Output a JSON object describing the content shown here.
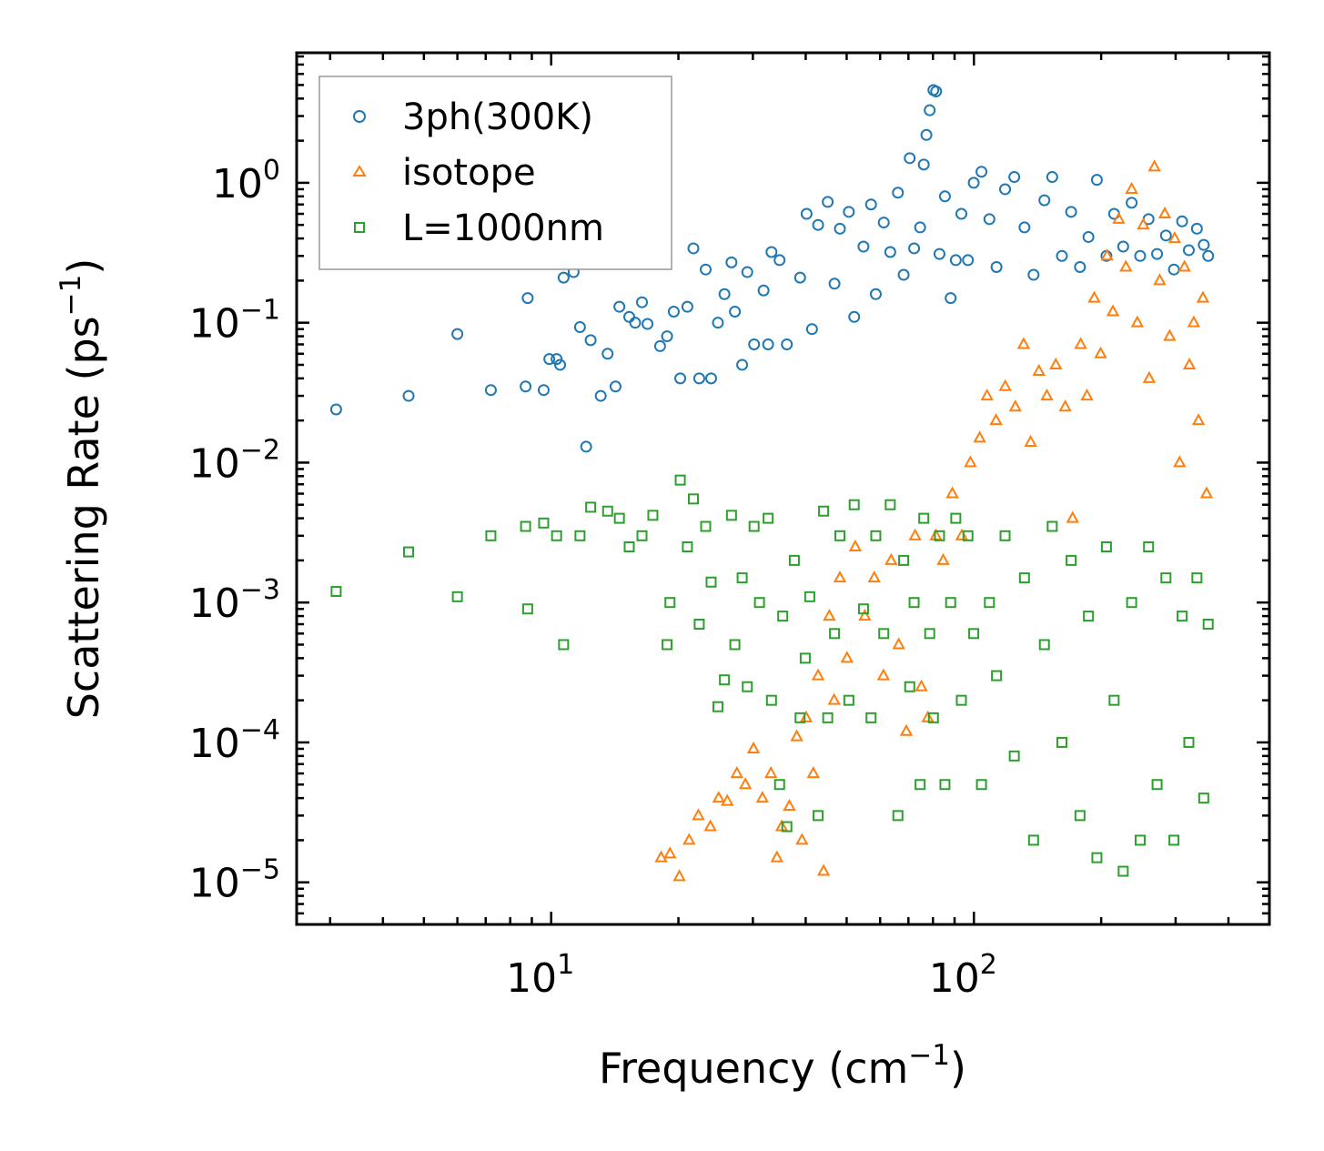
{
  "chart_data": {
    "type": "scatter",
    "xscale": "log",
    "yscale": "log",
    "xlim": [
      2.5,
      500
    ],
    "ylim": [
      5e-06,
      8.5
    ],
    "xlabel": {
      "text": "Frequency (cm",
      "sup": "−1",
      "close": ")"
    },
    "ylabel": {
      "text": "Scattering Rate (ps",
      "sup": "−1",
      "close": ")"
    },
    "xticks": [
      {
        "value": 10,
        "base": "10",
        "exp": "1"
      },
      {
        "value": 100,
        "base": "10",
        "exp": "2"
      }
    ],
    "yticks": [
      {
        "value": 1,
        "base": "10",
        "exp": "0"
      },
      {
        "value": 0.1,
        "base": "10",
        "exp": "−1"
      },
      {
        "value": 0.01,
        "base": "10",
        "exp": "−2"
      },
      {
        "value": 0.001,
        "base": "10",
        "exp": "−3"
      },
      {
        "value": 0.0001,
        "base": "10",
        "exp": "−4"
      },
      {
        "value": 1e-05,
        "base": "10",
        "exp": "−5"
      }
    ],
    "legend_position": "top-left",
    "series": [
      {
        "name": "3ph(300K)",
        "marker": "circle",
        "color": "#1f77b4",
        "points": [
          [
            3.1,
            0.024
          ],
          [
            4.6,
            0.03
          ],
          [
            6,
            0.083
          ],
          [
            7.2,
            0.033
          ],
          [
            8.7,
            0.035
          ],
          [
            8.8,
            0.15
          ],
          [
            9.6,
            0.033
          ],
          [
            9.9,
            0.055
          ],
          [
            10.3,
            0.055
          ],
          [
            10.5,
            0.05
          ],
          [
            10.7,
            0.21
          ],
          [
            11.3,
            0.23
          ],
          [
            11.7,
            0.093
          ],
          [
            12.1,
            0.013
          ],
          [
            12.4,
            0.075
          ],
          [
            13.1,
            0.03
          ],
          [
            13.6,
            0.06
          ],
          [
            14.2,
            0.035
          ],
          [
            14.5,
            0.13
          ],
          [
            15.3,
            0.11
          ],
          [
            15.8,
            0.1
          ],
          [
            16.4,
            0.14
          ],
          [
            16.9,
            0.098
          ],
          [
            17.1,
            0.29
          ],
          [
            17.4,
            0.31
          ],
          [
            18.1,
            0.068
          ],
          [
            18.8,
            0.08
          ],
          [
            19.5,
            0.12
          ],
          [
            20.2,
            0.04
          ],
          [
            21,
            0.13
          ],
          [
            21.7,
            0.34
          ],
          [
            22.4,
            0.04
          ],
          [
            23.2,
            0.24
          ],
          [
            23.9,
            0.04
          ],
          [
            24.8,
            0.1
          ],
          [
            25.7,
            0.16
          ],
          [
            26.7,
            0.27
          ],
          [
            27.2,
            0.12
          ],
          [
            28.3,
            0.05
          ],
          [
            29.1,
            0.23
          ],
          [
            30.2,
            0.07
          ],
          [
            31.8,
            0.17
          ],
          [
            32.6,
            0.07
          ],
          [
            33.2,
            0.32
          ],
          [
            34.7,
            0.28
          ],
          [
            36.1,
            0.07
          ],
          [
            38.8,
            0.21
          ],
          [
            40.2,
            0.6
          ],
          [
            41.4,
            0.09
          ],
          [
            42.8,
            0.5
          ],
          [
            45.1,
            0.73
          ],
          [
            46.8,
            0.19
          ],
          [
            48.2,
            0.47
          ],
          [
            50.6,
            0.62
          ],
          [
            52.1,
            0.11
          ],
          [
            54.8,
            0.35
          ],
          [
            57.1,
            0.7
          ],
          [
            58.6,
            0.16
          ],
          [
            61.2,
            0.52
          ],
          [
            63.4,
            0.32
          ],
          [
            66.1,
            0.85
          ],
          [
            68.2,
            0.22
          ],
          [
            70.5,
            1.5
          ],
          [
            72.2,
            0.34
          ],
          [
            74.6,
            0.48
          ],
          [
            76.1,
            1.35
          ],
          [
            77.2,
            2.2
          ],
          [
            78.6,
            3.3
          ],
          [
            80.2,
            4.6
          ],
          [
            81.4,
            4.5
          ],
          [
            82.9,
            0.31
          ],
          [
            85.4,
            0.8
          ],
          [
            88.1,
            0.15
          ],
          [
            90.6,
            0.28
          ],
          [
            93.4,
            0.6
          ],
          [
            96.8,
            0.28
          ],
          [
            99.9,
            1.0
          ],
          [
            104.2,
            1.2
          ],
          [
            108.8,
            0.55
          ],
          [
            113.1,
            0.25
          ],
          [
            118.5,
            0.9
          ],
          [
            124.6,
            1.1
          ],
          [
            131.7,
            0.48
          ],
          [
            138.4,
            0.22
          ],
          [
            146.8,
            0.75
          ],
          [
            153.2,
            1.1
          ],
          [
            161.5,
            0.3
          ],
          [
            169.8,
            0.62
          ],
          [
            178.2,
            0.25
          ],
          [
            186.6,
            0.41
          ],
          [
            195.4,
            1.05
          ],
          [
            205.8,
            0.3
          ],
          [
            214.6,
            0.6
          ],
          [
            225.5,
            0.35
          ],
          [
            236.1,
            0.72
          ],
          [
            247.3,
            0.3
          ],
          [
            258.9,
            0.55
          ],
          [
            271.2,
            0.31
          ],
          [
            284.6,
            0.42
          ],
          [
            297.3,
            0.24
          ],
          [
            310.8,
            0.53
          ],
          [
            322.4,
            0.33
          ],
          [
            336.9,
            0.47
          ],
          [
            349.7,
            0.36
          ],
          [
            358.2,
            0.3
          ]
        ]
      },
      {
        "name": "isotope",
        "marker": "triangle",
        "color": "#ff7f0e",
        "points": [
          [
            18.2,
            1.5e-05
          ],
          [
            19.1,
            1.6e-05
          ],
          [
            20.1,
            1.1e-05
          ],
          [
            21.2,
            2e-05
          ],
          [
            22.3,
            3e-05
          ],
          [
            23.8,
            2.5e-05
          ],
          [
            24.9,
            4e-05
          ],
          [
            26.1,
            3.8e-05
          ],
          [
            27.5,
            6e-05
          ],
          [
            28.8,
            5e-05
          ],
          [
            30.1,
            9e-05
          ],
          [
            31.6,
            4e-05
          ],
          [
            33.1,
            6e-05
          ],
          [
            34.2,
            1.5e-05
          ],
          [
            35.1,
            2.5e-05
          ],
          [
            36.6,
            3.5e-05
          ],
          [
            38.1,
            0.00011
          ],
          [
            39.2,
            2e-05
          ],
          [
            40.1,
            0.00015
          ],
          [
            41.7,
            6e-05
          ],
          [
            42.8,
            0.0003
          ],
          [
            44.1,
            1.2e-05
          ],
          [
            45.5,
            0.0008
          ],
          [
            46.7,
            0.0002
          ],
          [
            48.2,
            0.0015
          ],
          [
            50.1,
            0.0004
          ],
          [
            52.4,
            0.0025
          ],
          [
            55.2,
            0.0008
          ],
          [
            58.1,
            0.0015
          ],
          [
            61.1,
            0.0003
          ],
          [
            63.7,
            0.002
          ],
          [
            66.4,
            0.0005
          ],
          [
            69.2,
            0.00012
          ],
          [
            72.6,
            0.003
          ],
          [
            75.1,
            0.00025
          ],
          [
            77.8,
            0.00015
          ],
          [
            81.3,
            0.003
          ],
          [
            84.6,
            0.002
          ],
          [
            88.9,
            0.006
          ],
          [
            93.6,
            0.003
          ],
          [
            98.1,
            0.01
          ],
          [
            103.2,
            0.015
          ],
          [
            107.4,
            0.03
          ],
          [
            112.8,
            0.02
          ],
          [
            118.6,
            0.035
          ],
          [
            125.3,
            0.025
          ],
          [
            131.1,
            0.07
          ],
          [
            136.2,
            0.014
          ],
          [
            142.5,
            0.045
          ],
          [
            148.8,
            0.03
          ],
          [
            156.2,
            0.05
          ],
          [
            164.4,
            0.025
          ],
          [
            171.2,
            0.004
          ],
          [
            178.9,
            0.07
          ],
          [
            185.1,
            0.03
          ],
          [
            192.6,
            0.15
          ],
          [
            199.4,
            0.06
          ],
          [
            206.5,
            0.3
          ],
          [
            213.2,
            0.12
          ],
          [
            220.1,
            0.55
          ],
          [
            228.8,
            0.25
          ],
          [
            236.1,
            0.9
          ],
          [
            243.5,
            0.1
          ],
          [
            251.6,
            0.5
          ],
          [
            259.8,
            0.04
          ],
          [
            267.3,
            1.3
          ],
          [
            275.1,
            0.2
          ],
          [
            282.8,
            0.6
          ],
          [
            290.4,
            0.08
          ],
          [
            298.5,
            0.4
          ],
          [
            306.6,
            0.01
          ],
          [
            314.9,
            0.25
          ],
          [
            323.4,
            0.05
          ],
          [
            331.1,
            0.1
          ],
          [
            339.8,
            0.02
          ],
          [
            348.2,
            0.15
          ],
          [
            355.1,
            0.006
          ]
        ]
      },
      {
        "name": "L=1000nm",
        "marker": "square",
        "color": "#2ca02c",
        "points": [
          [
            3.1,
            0.0012
          ],
          [
            4.6,
            0.0023
          ],
          [
            6,
            0.0011
          ],
          [
            7.2,
            0.003
          ],
          [
            8.7,
            0.0035
          ],
          [
            8.8,
            0.0009
          ],
          [
            9.6,
            0.0037
          ],
          [
            10.3,
            0.003
          ],
          [
            10.7,
            0.0005
          ],
          [
            11.7,
            0.003
          ],
          [
            12.4,
            0.0048
          ],
          [
            13.6,
            0.0045
          ],
          [
            14.5,
            0.004
          ],
          [
            15.3,
            0.0025
          ],
          [
            16.4,
            0.003
          ],
          [
            17.4,
            0.0042
          ],
          [
            18.8,
            0.0005
          ],
          [
            19.1,
            0.001
          ],
          [
            20.2,
            0.0075
          ],
          [
            21,
            0.0025
          ],
          [
            21.7,
            0.0055
          ],
          [
            22.4,
            0.0007
          ],
          [
            23.2,
            0.0035
          ],
          [
            23.9,
            0.0014
          ],
          [
            24.8,
            0.00018
          ],
          [
            25.7,
            0.00028
          ],
          [
            26.7,
            0.0042
          ],
          [
            27.2,
            0.0005
          ],
          [
            28.3,
            0.0015
          ],
          [
            29.1,
            0.00025
          ],
          [
            30.2,
            0.0035
          ],
          [
            31.1,
            0.001
          ],
          [
            32.6,
            0.004
          ],
          [
            33.2,
            0.0002
          ],
          [
            34.7,
            5e-05
          ],
          [
            35.3,
            0.0008
          ],
          [
            36.1,
            2.5e-05
          ],
          [
            37.6,
            0.002
          ],
          [
            38.8,
            0.00015
          ],
          [
            39.9,
            0.0004
          ],
          [
            40.9,
            0.0011
          ],
          [
            42.8,
            3e-05
          ],
          [
            44.1,
            0.0045
          ],
          [
            45.1,
            0.00015
          ],
          [
            46.8,
            0.0006
          ],
          [
            48.2,
            0.003
          ],
          [
            50.6,
            0.0002
          ],
          [
            52.1,
            0.005
          ],
          [
            54.8,
            0.0009
          ],
          [
            57.1,
            0.00015
          ],
          [
            58.6,
            0.003
          ],
          [
            61.2,
            0.0006
          ],
          [
            63.4,
            0.005
          ],
          [
            66.1,
            3e-05
          ],
          [
            68.2,
            0.002
          ],
          [
            70.5,
            0.00025
          ],
          [
            72.2,
            0.001
          ],
          [
            74.6,
            5e-05
          ],
          [
            76.1,
            0.004
          ],
          [
            78.6,
            0.0006
          ],
          [
            80.2,
            0.00015
          ],
          [
            82.9,
            0.003
          ],
          [
            85.4,
            5e-05
          ],
          [
            88.1,
            0.001
          ],
          [
            90.6,
            0.004
          ],
          [
            93.4,
            0.0002
          ],
          [
            96.8,
            0.003
          ],
          [
            99.9,
            0.0006
          ],
          [
            104.2,
            5e-05
          ],
          [
            108.8,
            0.001
          ],
          [
            113.1,
            0.0003
          ],
          [
            118.5,
            0.003
          ],
          [
            124.6,
            8e-05
          ],
          [
            131.7,
            0.0015
          ],
          [
            138.4,
            2e-05
          ],
          [
            146.8,
            0.0005
          ],
          [
            153.2,
            0.0035
          ],
          [
            161.5,
            0.0001
          ],
          [
            169.8,
            0.002
          ],
          [
            178.2,
            3e-05
          ],
          [
            186.6,
            0.0008
          ],
          [
            195.4,
            1.5e-05
          ],
          [
            205.8,
            0.0025
          ],
          [
            214.6,
            0.0002
          ],
          [
            225.5,
            1.2e-05
          ],
          [
            236.1,
            0.001
          ],
          [
            247.3,
            2e-05
          ],
          [
            258.9,
            0.0025
          ],
          [
            271.2,
            5e-05
          ],
          [
            284.6,
            0.0015
          ],
          [
            297.3,
            2e-05
          ],
          [
            310.8,
            0.0008
          ],
          [
            322.4,
            0.0001
          ],
          [
            336.9,
            0.0015
          ],
          [
            349.7,
            4e-05
          ],
          [
            358.2,
            0.0007
          ]
        ]
      }
    ]
  }
}
